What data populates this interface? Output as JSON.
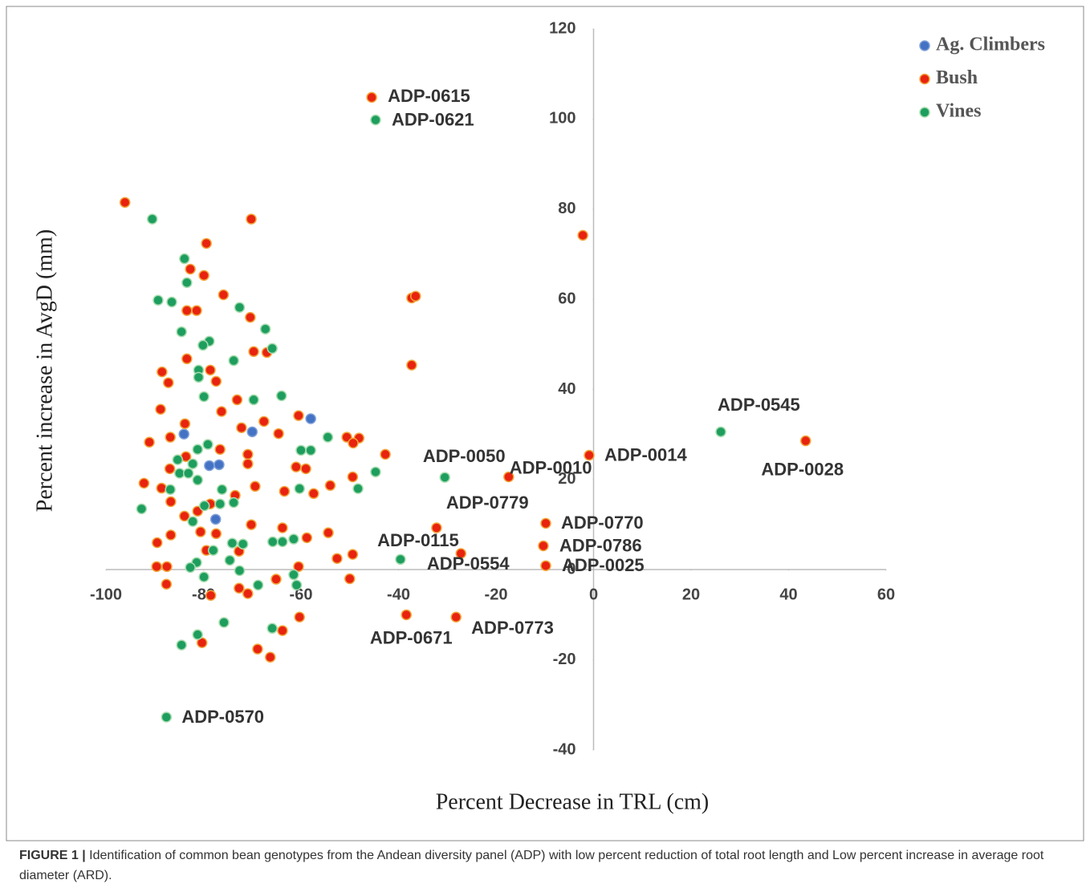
{
  "chart_data": {
    "type": "scatter",
    "x_label": "Percent Decrease in TRL (cm)",
    "y_label": "Percent increase in AvgD (mm)",
    "xlim": [
      -100,
      60
    ],
    "xticks": [
      -100,
      -80,
      -60,
      -40,
      -20,
      0,
      20,
      40,
      60
    ],
    "ylim": [
      -40,
      120
    ],
    "yticks": [
      -40,
      -20,
      0,
      20,
      40,
      60,
      80,
      100,
      120
    ],
    "legend": "top-right",
    "series": [
      {
        "name": "Ag. Climbers",
        "color": "#4472c4",
        "stroke": "#7d9fd8",
        "x": [
          -84.0,
          -58.0,
          -70.0,
          -78.8,
          -76.8,
          -77.5
        ],
        "values": [
          30.1,
          33.5,
          30.6,
          23.1,
          23.3,
          11.2
        ]
      },
      {
        "name": "Bush",
        "color": "#e8230f",
        "stroke": "#f3a43a",
        "x": [
          -45.5,
          43.5,
          -0.9,
          -17.4,
          -32.2,
          -9.8,
          -10.3,
          -9.8,
          -27.2,
          -38.4,
          -28.2,
          -96.1,
          -70.2,
          -79.4,
          -82.7,
          -79.9,
          -83.4,
          -81.4,
          -75.9,
          -70.4,
          -37.3,
          -36.5,
          -37.3,
          -88.5,
          -83.4,
          -78.6,
          -87.2,
          -77.4,
          -69.7,
          -67.0,
          -73.1,
          -88.8,
          -76.3,
          -83.8,
          -60.5,
          -67.6,
          -72.2,
          -64.6,
          -91.1,
          -86.8,
          -76.6,
          -70.9,
          -50.6,
          -48.1,
          -42.7,
          -49.3,
          -83.6,
          -86.9,
          -61.0,
          -59.0,
          -70.9,
          -92.2,
          -88.6,
          -69.4,
          -63.4,
          -57.4,
          -54.0,
          -49.4,
          -86.7,
          -81.2,
          -78.6,
          -73.5,
          -83.9,
          -80.6,
          -86.7,
          -77.4,
          -70.2,
          -63.8,
          -58.8,
          -54.4,
          -89.5,
          -79.4,
          -72.7,
          -52.6,
          -49.4,
          -89.6,
          -87.5,
          -60.5,
          -50.0,
          -65.1,
          -87.6,
          -72.7,
          -70.9,
          -78.5,
          -60.3,
          -63.8,
          -80.3,
          -68.9,
          -66.3,
          -2.2
        ],
        "values": [
          104.8,
          28.6,
          25.4,
          20.6,
          9.3,
          10.3,
          5.3,
          0.9,
          3.6,
          -10.0,
          -10.5,
          81.5,
          77.8,
          72.4,
          66.7,
          65.3,
          57.5,
          57.5,
          61.0,
          56.0,
          60.3,
          60.7,
          45.4,
          43.9,
          46.8,
          44.3,
          41.5,
          41.8,
          48.4,
          48.2,
          37.7,
          35.6,
          35.1,
          32.4,
          34.2,
          32.9,
          31.5,
          30.2,
          28.3,
          29.4,
          26.7,
          25.6,
          29.4,
          29.2,
          25.6,
          28.1,
          25.1,
          22.4,
          22.8,
          22.4,
          23.5,
          19.2,
          18.1,
          18.5,
          17.4,
          16.9,
          18.7,
          20.6,
          15.1,
          13.0,
          14.6,
          16.5,
          11.9,
          8.4,
          7.7,
          8.0,
          10.0,
          9.3,
          7.1,
          8.2,
          6.0,
          4.3,
          4.1,
          2.5,
          3.4,
          0.7,
          0.7,
          0.7,
          -2.0,
          -2.1,
          -3.2,
          -4.1,
          -5.3,
          -5.7,
          -10.5,
          -13.5,
          -16.2,
          -17.6,
          -19.4,
          74.2
        ],
        "labels": [
          "ADP-0615",
          "ADP-0028",
          "ADP-0014",
          "ADP-0010",
          "ADP-0779",
          "ADP-0770",
          "ADP-0786",
          "ADP-0025",
          "ADP-0554",
          "ADP-0671",
          "ADP-0773",
          null,
          null,
          null,
          null,
          null,
          null,
          null,
          null,
          null,
          null,
          null,
          null,
          null,
          null,
          null,
          null,
          null,
          null,
          null,
          null,
          null,
          null,
          null,
          null,
          null,
          null,
          null,
          null,
          null,
          null,
          null,
          null,
          null,
          null,
          null,
          null,
          null,
          null,
          null,
          null,
          null,
          null,
          null,
          null,
          null,
          null,
          null,
          null,
          null,
          null,
          null,
          null,
          null,
          null,
          null,
          null,
          null,
          null,
          null,
          null,
          null,
          null,
          null,
          null,
          null,
          null,
          null,
          null,
          null,
          null,
          null,
          null,
          null,
          null,
          null,
          null,
          null,
          null,
          null
        ]
      },
      {
        "name": "Vines",
        "color": "#1e9e5e",
        "stroke": "#a6dcae",
        "x": [
          -44.7,
          26.1,
          -30.5,
          -39.6,
          -87.6,
          -90.5,
          -83.9,
          -83.4,
          -89.3,
          -86.5,
          -72.6,
          -67.3,
          -84.5,
          -78.8,
          -80.1,
          -65.9,
          -73.8,
          -81.0,
          -81.0,
          -79.9,
          -69.7,
          -64.0,
          -54.5,
          -79.1,
          -81.2,
          -60.0,
          -58.0,
          -85.3,
          -82.2,
          -44.7,
          -84.9,
          -83.1,
          -81.2,
          -60.3,
          -48.3,
          -86.8,
          -76.2,
          -92.7,
          -79.8,
          -76.6,
          -73.8,
          -82.2,
          -65.8,
          -63.8,
          -61.5,
          -74.1,
          -71.9,
          -78.0,
          -74.6,
          -81.4,
          -82.7,
          -72.6,
          -61.5,
          -79.9,
          -68.8,
          -60.9,
          -75.8,
          -65.9,
          -81.2,
          -84.5
        ],
        "values": [
          99.8,
          30.6,
          20.5,
          2.3,
          -32.7,
          77.8,
          69.0,
          63.7,
          59.8,
          59.4,
          58.2,
          53.4,
          52.8,
          50.7,
          49.8,
          49.1,
          46.4,
          44.3,
          42.7,
          38.4,
          37.7,
          38.6,
          29.4,
          27.8,
          26.7,
          26.5,
          26.5,
          24.4,
          23.5,
          21.7,
          21.4,
          21.4,
          19.9,
          18.0,
          18.0,
          17.8,
          17.8,
          13.5,
          14.2,
          14.6,
          14.9,
          10.7,
          6.2,
          6.2,
          6.8,
          5.9,
          5.7,
          4.3,
          2.1,
          1.6,
          0.5,
          -0.2,
          -1.1,
          -1.6,
          -3.4,
          -3.4,
          -11.7,
          -13.0,
          -14.4,
          -16.7
        ],
        "labels": [
          "ADP-0621",
          "ADP-0545",
          "ADP-0050",
          "ADP-0115",
          "ADP-0570",
          null,
          null,
          null,
          null,
          null,
          null,
          null,
          null,
          null,
          null,
          null,
          null,
          null,
          null,
          null,
          null,
          null,
          null,
          null,
          null,
          null,
          null,
          null,
          null,
          null,
          null,
          null,
          null,
          null,
          null,
          null,
          null,
          null,
          null,
          null,
          null,
          null,
          null,
          null,
          null,
          null,
          null,
          null,
          null,
          null,
          null,
          null,
          null,
          null,
          null,
          null,
          null,
          null,
          null,
          null
        ]
      }
    ]
  },
  "caption": {
    "label": "FIGURE 1 |",
    "text": "Identification of common bean genotypes from the Andean diversity panel (ADP) with low percent reduction of total root length and Low percent increase in average root diameter (ARD)."
  }
}
